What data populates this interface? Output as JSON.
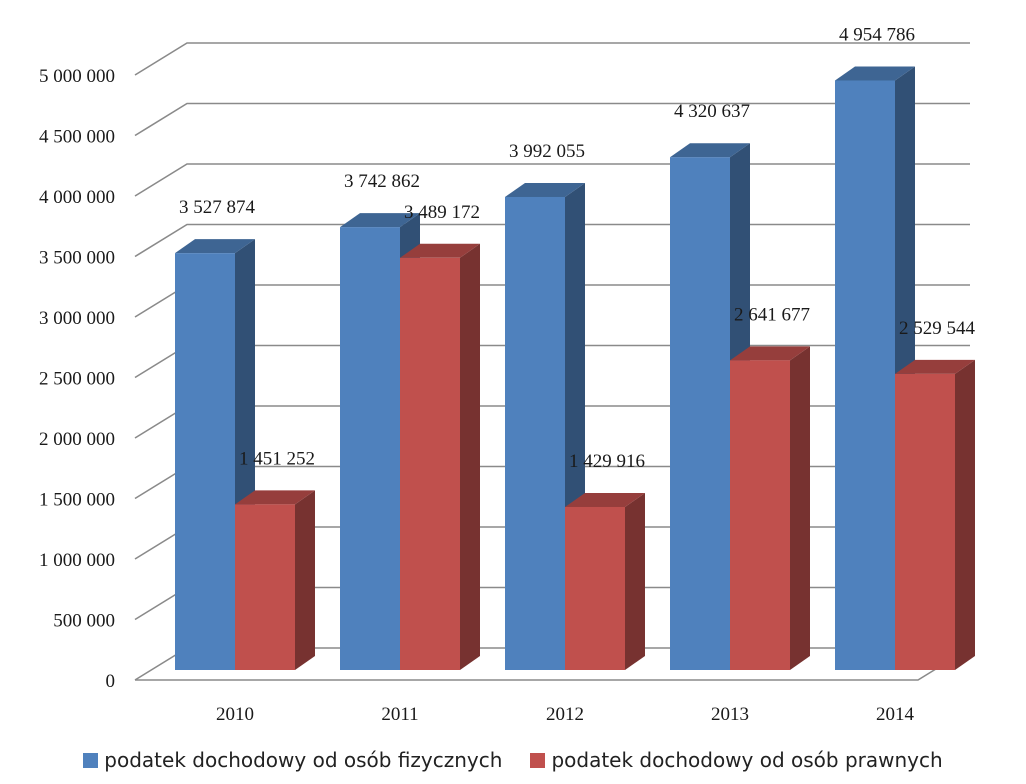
{
  "chart_data": {
    "type": "bar",
    "style": "3d-clustered-column",
    "categories": [
      "2010",
      "2011",
      "2012",
      "2013",
      "2014"
    ],
    "series": [
      {
        "name": "podatek dochodowy od osób fizycznych",
        "color": "#4F81BD",
        "values": [
          3527874,
          3742862,
          3992055,
          4320637,
          4954786
        ],
        "labels": [
          "3 527 874",
          "3 742 862",
          "3 992 055",
          "4 320 637",
          "4 954 786"
        ]
      },
      {
        "name": "podatek dochodowy od osób prawnych",
        "color": "#C0504D",
        "values": [
          1451252,
          3489172,
          1429916,
          2641677,
          2529544
        ],
        "labels": [
          "1 451 252",
          "3 489 172",
          "1 429 916",
          "2 641 677",
          "2 529 544"
        ]
      }
    ],
    "y_ticks": [
      "0",
      "500 000",
      "1 000 000",
      "1 500 000",
      "2 000 000",
      "2 500 000",
      "3 000 000",
      "3 500 000",
      "4 000 000",
      "4 500 000",
      "5 000 000"
    ],
    "ylim": [
      0,
      5000000
    ],
    "grid": true,
    "legend_position": "bottom"
  }
}
